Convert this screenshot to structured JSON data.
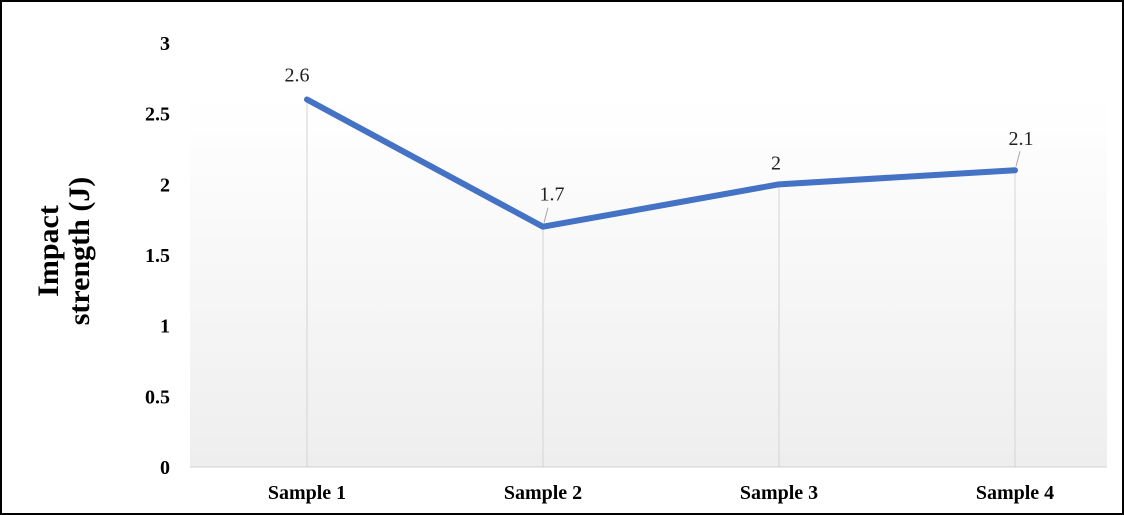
{
  "chart_data": {
    "type": "line",
    "title": "",
    "xlabel": "",
    "ylabel_lines": [
      "Impact",
      "strength (J)"
    ],
    "categories": [
      "Sample 1",
      "Sample 2",
      "Sample 3",
      "Sample 4"
    ],
    "series": [
      {
        "values": [
          2.6,
          1.7,
          2,
          2.1
        ],
        "data_labels": [
          "2.6",
          "1.7",
          "2",
          "2.1"
        ],
        "color": "#4472c4"
      }
    ],
    "ylim": [
      0,
      3
    ],
    "yticks": [
      0,
      0.5,
      1,
      1.5,
      2,
      2.5,
      3
    ],
    "ytick_labels": [
      "0",
      "0.5",
      "1",
      "1.5",
      "2",
      "2.5",
      "3"
    ],
    "grid": "vertical drop lines at each category",
    "legend": "none",
    "plot_background": "light gray gradient"
  }
}
